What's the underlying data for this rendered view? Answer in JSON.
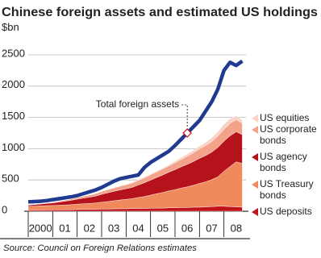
{
  "chart_data": {
    "type": "area",
    "stacked": true,
    "title": "Chinese foreign assets and estimated US holdings",
    "subtitle": "$bn",
    "source": "Source: Council on Foreign Relations estimates",
    "x": [
      2000,
      2000.25,
      2000.5,
      2000.75,
      2001,
      2001.25,
      2001.5,
      2001.75,
      2002,
      2002.25,
      2002.5,
      2002.75,
      2003,
      2003.25,
      2003.5,
      2003.75,
      2004,
      2004.25,
      2004.5,
      2004.75,
      2005,
      2005.25,
      2005.5,
      2005.75,
      2006,
      2006.25,
      2006.5,
      2006.75,
      2007,
      2007.25,
      2007.5,
      2007.75,
      2008,
      2008.25,
      2008.5,
      2008.75
    ],
    "xlim": [
      2000,
      2009
    ],
    "xticks": [
      {
        "value": 2000.5,
        "label": "2000"
      },
      {
        "value": 2001.5,
        "label": "01"
      },
      {
        "value": 2002.5,
        "label": "02"
      },
      {
        "value": 2003.5,
        "label": "03"
      },
      {
        "value": 2004.5,
        "label": "04"
      },
      {
        "value": 2005.5,
        "label": "05"
      },
      {
        "value": 2006.5,
        "label": "06"
      },
      {
        "value": 2007.5,
        "label": "07"
      },
      {
        "value": 2008.5,
        "label": "08"
      }
    ],
    "ylim": [
      0,
      2500
    ],
    "yticks": [
      0,
      500,
      1000,
      1500,
      2000,
      2500
    ],
    "grid": true,
    "series": [
      {
        "name": "US deposits",
        "color": "#c0141c",
        "values": [
          20,
          20,
          20,
          22,
          22,
          24,
          25,
          25,
          28,
          30,
          30,
          32,
          35,
          35,
          38,
          40,
          40,
          42,
          45,
          45,
          48,
          50,
          50,
          55,
          55,
          60,
          60,
          65,
          65,
          70,
          75,
          80,
          80,
          75,
          70,
          65
        ]
      },
      {
        "name": "US Treasury bonds",
        "color": "#f08a5d",
        "values": [
          60,
          62,
          65,
          68,
          70,
          72,
          75,
          80,
          85,
          90,
          95,
          100,
          110,
          120,
          130,
          140,
          150,
          160,
          175,
          190,
          210,
          230,
          250,
          270,
          290,
          310,
          330,
          350,
          380,
          400,
          430,
          470,
          560,
          640,
          720,
          700
        ]
      },
      {
        "name": "US agency bonds",
        "color": "#b5121b",
        "values": [
          20,
          25,
          30,
          35,
          40,
          50,
          60,
          70,
          80,
          90,
          100,
          110,
          125,
          140,
          150,
          160,
          170,
          180,
          200,
          220,
          240,
          260,
          280,
          300,
          320,
          340,
          360,
          380,
          400,
          420,
          440,
          470,
          480,
          490,
          480,
          460
        ]
      },
      {
        "name": "US corporate bonds",
        "color": "#f2a38a",
        "values": [
          5,
          6,
          8,
          10,
          12,
          15,
          18,
          20,
          25,
          30,
          35,
          40,
          45,
          50,
          55,
          60,
          65,
          70,
          75,
          80,
          85,
          90,
          95,
          100,
          110,
          120,
          130,
          140,
          150,
          160,
          170,
          180,
          190,
          200,
          195,
          180
        ]
      },
      {
        "name": "US equities",
        "color": "#f9d3c8",
        "values": [
          0,
          0,
          0,
          0,
          0,
          0,
          0,
          0,
          0,
          0,
          0,
          0,
          2,
          3,
          4,
          5,
          6,
          8,
          10,
          12,
          14,
          16,
          18,
          20,
          25,
          30,
          35,
          40,
          45,
          50,
          60,
          70,
          80,
          75,
          60,
          50
        ]
      },
      {
        "name": "Total foreign assets",
        "type": "line",
        "color": "#1f3a8f",
        "values": [
          150,
          155,
          160,
          170,
          185,
          200,
          215,
          230,
          250,
          280,
          310,
          340,
          380,
          430,
          480,
          520,
          540,
          560,
          580,
          700,
          780,
          840,
          900,
          960,
          1050,
          1150,
          1250,
          1350,
          1450,
          1600,
          1750,
          1950,
          2250,
          2380,
          2330,
          2400
        ]
      }
    ]
  }
}
